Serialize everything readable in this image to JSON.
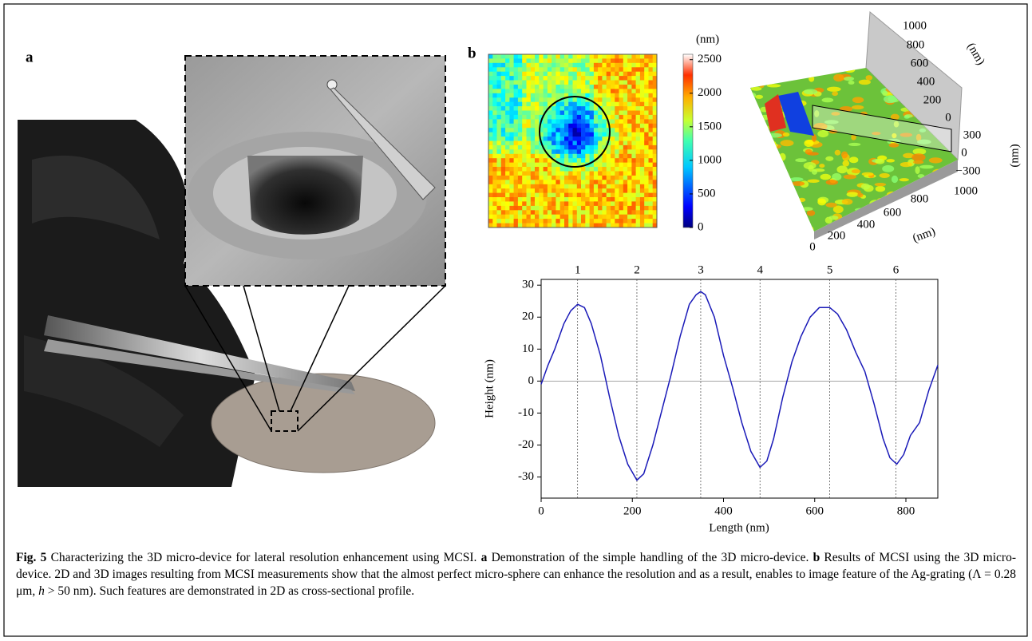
{
  "figure": {
    "panel_a": "a",
    "panel_b": "b",
    "colorbar": {
      "unit": "(nm)",
      "clim": [
        0,
        2580
      ],
      "ticks": [
        0,
        500,
        1000,
        1500,
        2000,
        2500
      ]
    },
    "plot3d": {
      "x_ticks": [
        "0",
        "200",
        "400",
        "600",
        "800",
        "1000"
      ],
      "x_unit": "(nm)",
      "y_ticks": [
        "1000",
        "800",
        "600",
        "400",
        "200",
        "0"
      ],
      "y_unit": "(nm)",
      "z_ticks": [
        "300",
        "0",
        "−300"
      ],
      "z_unit": "(nm)"
    }
  },
  "chart_data": {
    "type": "line",
    "x_label": "Length (nm)",
    "y_label": "Height (nm)",
    "x": [
      0,
      15,
      30,
      50,
      65,
      80,
      95,
      110,
      130,
      150,
      170,
      190,
      210,
      225,
      245,
      265,
      285,
      305,
      325,
      340,
      350,
      360,
      380,
      400,
      420,
      440,
      460,
      480,
      495,
      510,
      530,
      550,
      570,
      590,
      610,
      633,
      650,
      670,
      690,
      710,
      730,
      750,
      765,
      780,
      795,
      810,
      830,
      850,
      870
    ],
    "series": [
      {
        "color": "#1a1ab8",
        "values": [
          -1,
          5,
          10,
          18,
          22,
          24,
          23,
          18,
          8,
          -5,
          -17,
          -26,
          -31,
          -29,
          -20,
          -9,
          2,
          14,
          24,
          27,
          28,
          27,
          20,
          8,
          -2,
          -13,
          -22,
          -27,
          -25,
          -18,
          -5,
          6,
          14,
          20,
          23,
          23,
          21,
          16,
          9,
          3,
          -7,
          -18,
          -24,
          -26,
          -23,
          -17,
          -13,
          -3,
          5
        ]
      }
    ],
    "xlim": [
      0,
      870
    ],
    "xticks": [
      0,
      200,
      400,
      600,
      800
    ],
    "ylim": [
      -36.6,
      31.8
    ],
    "yticks": [
      -30,
      -20,
      -10,
      0,
      10,
      20,
      30
    ],
    "markers": {
      "x": [
        80,
        210,
        350,
        480,
        633,
        778
      ],
      "labels": [
        "1",
        "2",
        "3",
        "4",
        "5",
        "6"
      ]
    }
  },
  "caption": {
    "label": "Fig. 5",
    "intro": " Characterizing the 3D micro-device for lateral resolution enhancement using MCSI. ",
    "a_key": "a",
    "a_text": " Demonstration of the simple handling of the 3D micro-device. ",
    "b_key": "b",
    "b_text1": " Results of MCSI using the 3D micro-device. 2D and 3D images resulting from MCSI measurements show that the almost perfect micro-sphere can enhance the resolution and as a result, enables to image feature of the Ag-grating (Λ = 0.28 μm, ",
    "b_h": "h",
    "b_text2": " > 50 nm). Such features are demonstrated in 2D as cross-sectional profile."
  }
}
